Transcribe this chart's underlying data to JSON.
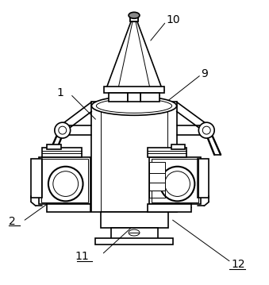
{
  "background_color": "#ffffff",
  "line_color": "#000000",
  "line_width": 1.2,
  "figure_width": 3.39,
  "figure_height": 3.59,
  "label_fontsize": 10
}
